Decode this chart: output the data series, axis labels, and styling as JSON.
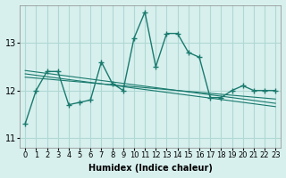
{
  "xlabel": "Humidex (Indice chaleur)",
  "ylabel": "",
  "background_color": "#d7f0ee",
  "grid_color": "#b0d8d4",
  "line_color": "#1a7a6e",
  "xlim": [
    -0.5,
    23.5
  ],
  "ylim": [
    10.8,
    13.8
  ],
  "yticks": [
    11,
    12,
    13
  ],
  "xtick_labels": [
    "0",
    "1",
    "2",
    "3",
    "4",
    "5",
    "6",
    "7",
    "8",
    "9",
    "10",
    "11",
    "12",
    "13",
    "14",
    "15",
    "16",
    "17",
    "18",
    "19",
    "20",
    "21",
    "22",
    "23"
  ],
  "main_series": [
    11.3,
    12.0,
    12.4,
    12.4,
    11.7,
    11.75,
    11.8,
    12.6,
    12.15,
    12.0,
    13.1,
    13.65,
    12.5,
    13.2,
    13.2,
    12.8,
    12.7,
    11.85,
    11.85,
    12.0,
    12.1,
    12.0,
    12.0,
    12.0
  ],
  "reg_lines": [
    [
      12.35,
      12.32,
      12.29,
      12.26,
      12.23,
      12.2,
      12.17,
      12.14,
      12.11,
      12.08,
      12.05,
      12.02,
      11.99,
      11.96,
      11.93,
      11.9,
      11.87,
      11.84,
      11.81,
      11.78,
      11.75,
      11.72,
      11.69,
      11.66
    ],
    [
      12.42,
      12.39,
      12.36,
      12.33,
      12.3,
      12.27,
      12.24,
      12.21,
      12.18,
      12.15,
      12.12,
      12.09,
      12.06,
      12.03,
      12.0,
      11.97,
      11.94,
      11.91,
      11.88,
      11.85,
      11.82,
      11.79,
      11.76,
      11.73
    ],
    [
      12.28,
      12.26,
      12.24,
      12.22,
      12.2,
      12.18,
      12.16,
      12.14,
      12.12,
      12.1,
      12.08,
      12.06,
      12.04,
      12.02,
      12.0,
      11.98,
      11.96,
      11.94,
      11.92,
      11.9,
      11.88,
      11.86,
      11.84,
      11.82
    ]
  ]
}
